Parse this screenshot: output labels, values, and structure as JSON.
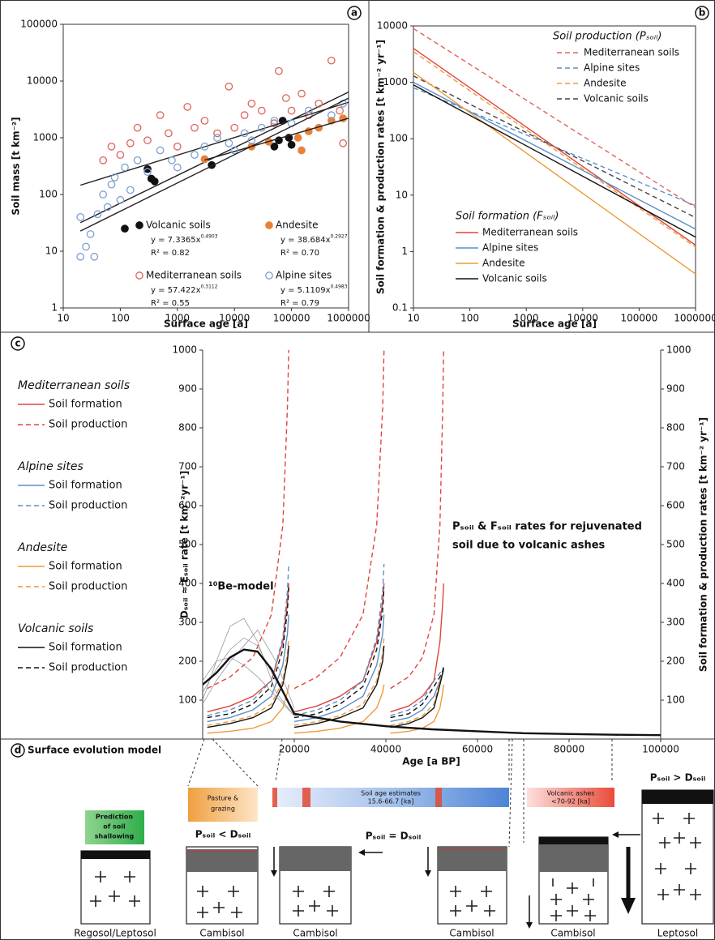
{
  "chart_data": [
    {
      "type": "scatter",
      "panel_label": "a",
      "xlabel": "Surface age [a]",
      "ylabel": "Soil mass [t km⁻²]",
      "xlog": true,
      "ylog": true,
      "xlim": [
        10,
        1000000
      ],
      "ylim": [
        1,
        100000
      ],
      "xticks": [
        10,
        100,
        1000,
        10000,
        100000,
        1000000
      ],
      "yticks": [
        1,
        10,
        100,
        1000,
        10000,
        100000
      ],
      "fit_color": "#222222",
      "series": [
        {
          "name": "Volcanic soils",
          "color": "#111111",
          "marker": "filled",
          "x": [
            300,
            400,
            350,
            120,
            4000,
            50000,
            60000,
            90000,
            100000,
            70000
          ],
          "values": [
            280,
            170,
            190,
            25,
            330,
            700,
            900,
            1000,
            750,
            2000
          ],
          "fit": {
            "equation": "y = 7.3365x",
            "exponent": "0.4903",
            "r2": "R² = 0.82",
            "x": [
              20,
              1000000
            ],
            "values": [
              31.9,
              6390
            ]
          }
        },
        {
          "name": "Andesite",
          "color": "#e8823a",
          "marker": "filled",
          "x": [
            3000,
            20000,
            40000,
            150000,
            200000,
            300000,
            500000,
            800000,
            130000
          ],
          "values": [
            420,
            700,
            850,
            600,
            1300,
            1500,
            2000,
            2200,
            1000
          ],
          "fit": {
            "equation": "y = 38.684x",
            "exponent": "0.2927",
            "r2": "R² = 0.70",
            "x": [
              3000,
              1000000
            ],
            "values": [
              403,
              2207
            ]
          }
        },
        {
          "name": "Mediterranean soils",
          "color": "#e0625a",
          "marker": "open",
          "x": [
            50,
            70,
            100,
            150,
            200,
            300,
            500,
            700,
            1000,
            2000,
            3000,
            5000,
            8000,
            10000,
            20000,
            30000,
            50000,
            80000,
            100000,
            150000,
            200000,
            300000,
            500000,
            700000,
            800000,
            60000,
            1500,
            15000
          ],
          "values": [
            400,
            700,
            500,
            800,
            1500,
            900,
            2500,
            1200,
            700,
            1500,
            2000,
            1200,
            8000,
            1500,
            4000,
            3000,
            1800,
            5000,
            3000,
            6000,
            2500,
            4000,
            23000,
            3000,
            800,
            15000,
            3500,
            2500
          ],
          "fit": {
            "equation": "y = 57.422x",
            "exponent": "0.3112",
            "r2": "R² = 0.55",
            "x": [
              20,
              1000000
            ],
            "values": [
              146,
              4230
            ]
          }
        },
        {
          "name": "Alpine sites",
          "color": "#7c9fd0",
          "marker": "open",
          "x": [
            20,
            25,
            30,
            35,
            40,
            50,
            60,
            70,
            80,
            100,
            120,
            150,
            200,
            300,
            500,
            800,
            1000,
            2000,
            3000,
            5000,
            8000,
            10000,
            15000,
            20000,
            30000,
            50000,
            100000,
            200000,
            500000,
            800000,
            20
          ],
          "values": [
            40,
            12,
            20,
            8,
            45,
            100,
            60,
            150,
            200,
            80,
            300,
            120,
            400,
            250,
            600,
            400,
            300,
            500,
            700,
            1000,
            800,
            600,
            1200,
            900,
            1500,
            2000,
            1800,
            3000,
            2500,
            4000,
            8
          ],
          "fit": {
            "equation": "y = 5.1109x",
            "exponent": "0.4983",
            "r2": "R² = 0.79",
            "x": [
              20,
              1000000
            ],
            "values": [
              22.7,
              4997
            ]
          }
        }
      ]
    },
    {
      "type": "line",
      "panel_label": "b",
      "xlabel": "Surface age [a]",
      "ylabel": "Soil formation & production rates [t km⁻² yr⁻¹]",
      "xlog": true,
      "ylog": true,
      "xlim": [
        10,
        1000000
      ],
      "ylim": [
        0.1,
        10000
      ],
      "xticks": [
        10,
        100,
        1000,
        10000,
        100000,
        1000000
      ],
      "yticks": [
        0.1,
        1,
        10,
        100,
        1000,
        10000
      ],
      "x": [
        10,
        1000000
      ],
      "groups": [
        {
          "title": "Soil production (Pₛₒᵢₗ)",
          "style": "dashed",
          "series": [
            {
              "name": "Mediterranean soils",
              "color": "#e0625a",
              "values": [
                9000,
                6
              ]
            },
            {
              "name": "Alpine sites",
              "color": "#5b8fc9",
              "values": [
                800,
                6.5
              ]
            },
            {
              "name": "Andesite",
              "color": "#ef9a3a",
              "values": [
                3500,
                1.2
              ]
            },
            {
              "name": "Volcanic soils",
              "color": "#444444",
              "values": [
                1300,
                4
              ]
            }
          ]
        },
        {
          "title": "Soil formation (Fₛₒᵢₗ)",
          "style": "solid",
          "series": [
            {
              "name": "Mediterranean soils",
              "color": "#e0453c",
              "values": [
                4000,
                1.3
              ]
            },
            {
              "name": "Alpine sites",
              "color": "#5b8fc9",
              "values": [
                1000,
                2.5
              ]
            },
            {
              "name": "Andesite",
              "color": "#ef9a3a",
              "values": [
                1500,
                0.4
              ]
            },
            {
              "name": "Volcanic soils",
              "color": "#111111",
              "values": [
                900,
                1.8
              ]
            }
          ]
        }
      ]
    },
    {
      "type": "line",
      "panel_label": "c",
      "xlabel": "Age [a BP]",
      "ylabel": "Dₛₒᵢₗ ≈ Eₛₒᵢₗ rate [t km⁻²yr⁻¹]",
      "y2label": "Soil formation & production rates [t km⁻² yr⁻¹]",
      "xlim": [
        0,
        100000
      ],
      "ylim": [
        0,
        1000
      ],
      "y2lim": [
        0,
        1000
      ],
      "xticks": [
        20000,
        40000,
        60000,
        80000,
        100000
      ],
      "yticks": [
        100,
        200,
        300,
        400,
        500,
        600,
        700,
        800,
        900,
        1000
      ],
      "y2ticks": [
        100,
        200,
        300,
        400,
        500,
        600,
        700,
        800,
        900,
        1000
      ],
      "annotations": [
        "¹⁰Be-model",
        "Pₛₒᵢₗ & Fₛₒᵢₗ rates for rejuvenated",
        "soil due to volcanic ashes"
      ],
      "groups": [
        "Mediterranean soils",
        "Alpine sites",
        "Andesite",
        "Volcanic soils"
      ],
      "x": [
        1000,
        6000,
        11000,
        15000,
        17500,
        18500,
        18800,
        19000,
        20000,
        25000,
        30000,
        35000,
        38000,
        39300,
        39600,
        40000,
        41000,
        45000,
        48000,
        50500,
        51800,
        52400,
        52600
      ],
      "series": [
        {
          "name": "Soil formation",
          "color": "#e0453c",
          "style": "solid",
          "axis": "y2",
          "values": [
            70,
            85,
            110,
            150,
            250,
            350,
            400,
            null,
            70,
            85,
            110,
            150,
            250,
            350,
            400,
            null,
            70,
            85,
            110,
            150,
            250,
            350,
            400
          ]
        },
        {
          "name": "Soil production",
          "color": "#e0453c",
          "style": "dashed",
          "axis": "y2",
          "values": [
            130,
            160,
            210,
            320,
            550,
            850,
            1000,
            null,
            130,
            160,
            210,
            320,
            550,
            850,
            1000,
            null,
            130,
            160,
            210,
            320,
            550,
            850,
            1000
          ]
        },
        {
          "name": "Soil formation",
          "color": "#5b8fc9",
          "style": "solid",
          "axis": "y2",
          "values": [
            45,
            55,
            75,
            110,
            190,
            270,
            320,
            null,
            45,
            55,
            75,
            110,
            190,
            270,
            320,
            null,
            45,
            55,
            75,
            110,
            150,
            170,
            180
          ]
        },
        {
          "name": "Soil production",
          "color": "#5b8fc9",
          "style": "dashed",
          "axis": "y2",
          "values": [
            60,
            75,
            100,
            150,
            260,
            380,
            450,
            null,
            60,
            75,
            100,
            150,
            260,
            380,
            450,
            null,
            60,
            75,
            100,
            150,
            170,
            180,
            185
          ]
        },
        {
          "name": "Soil formation",
          "color": "#ef9a3a",
          "style": "solid",
          "axis": "y2",
          "values": [
            15,
            20,
            28,
            45,
            80,
            120,
            140,
            null,
            15,
            20,
            28,
            45,
            80,
            120,
            140,
            null,
            15,
            20,
            28,
            45,
            80,
            120,
            140
          ]
        },
        {
          "name": "Soil production",
          "color": "#ef9a3a",
          "style": "dashed",
          "axis": "y2",
          "values": [
            35,
            45,
            60,
            90,
            150,
            220,
            260,
            null,
            35,
            45,
            60,
            90,
            150,
            220,
            260,
            null,
            35,
            45,
            60,
            90,
            150,
            170,
            180
          ]
        },
        {
          "name": "Soil formation",
          "color": "#111111",
          "style": "solid",
          "axis": "y2",
          "values": [
            30,
            40,
            55,
            80,
            140,
            200,
            240,
            null,
            30,
            40,
            55,
            80,
            140,
            200,
            240,
            null,
            30,
            40,
            55,
            80,
            140,
            170,
            180
          ]
        },
        {
          "name": "Soil production",
          "color": "#111111",
          "style": "dashed",
          "axis": "y2",
          "values": [
            55,
            65,
            90,
            135,
            230,
            330,
            390,
            null,
            55,
            65,
            90,
            135,
            230,
            330,
            390,
            null,
            55,
            65,
            90,
            135,
            160,
            175,
            185
          ]
        },
        {
          "color": "#999999",
          "style": "solid",
          "x": [
            0,
            3000,
            6000,
            9000,
            12000,
            16000,
            20000
          ],
          "values": [
            100,
            200,
            290,
            310,
            250,
            120,
            60
          ]
        },
        {
          "color": "#999999",
          "style": "solid",
          "x": [
            0,
            3000,
            6000,
            9000,
            12000,
            16000,
            20000
          ],
          "values": [
            120,
            180,
            230,
            260,
            240,
            150,
            70
          ]
        },
        {
          "color": "#999999",
          "style": "solid",
          "x": [
            0,
            3000,
            6000,
            9000,
            12000,
            16000,
            20000
          ],
          "values": [
            150,
            200,
            210,
            190,
            160,
            110,
            60
          ]
        },
        {
          "color": "#999999",
          "style": "solid",
          "x": [
            0,
            3000,
            6000,
            9000,
            12000,
            16000,
            20000
          ],
          "values": [
            90,
            150,
            200,
            240,
            280,
            200,
            80
          ]
        },
        {
          "color": "#111111",
          "style": "solid",
          "x": [
            0,
            3000,
            6000,
            9000,
            12000,
            15000,
            20000,
            30000,
            40000,
            50000,
            60000,
            70000,
            80000,
            90000,
            100000
          ],
          "values": [
            140,
            170,
            210,
            230,
            225,
            180,
            65,
            45,
            33,
            25,
            20,
            15,
            13,
            11,
            10
          ]
        }
      ]
    }
  ],
  "diagram": {
    "panel_label": "d",
    "title": "Surface evolution model",
    "prediction": [
      "Prediction",
      "of soil",
      "shallowing"
    ],
    "pasture": [
      "Pasture &",
      "grazing"
    ],
    "stage1": "Pₛₒᵢₗ < Dₛₒᵢₗ",
    "age_estimates": [
      "Soil age estimates",
      "15.6-66.7 [ka]"
    ],
    "stage2": "Pₛₒᵢₗ = Dₛₒᵢₗ",
    "ashes": [
      "Volcanic ashes",
      "<70-92 [ka]"
    ],
    "stage3": "Pₛₒᵢₗ > Dₛₒᵢₗ",
    "soils": [
      "Regosol/Leptosol",
      "Cambisol",
      "Cambisol",
      "Cambisol",
      "Cambisol",
      "Leptosol"
    ]
  }
}
